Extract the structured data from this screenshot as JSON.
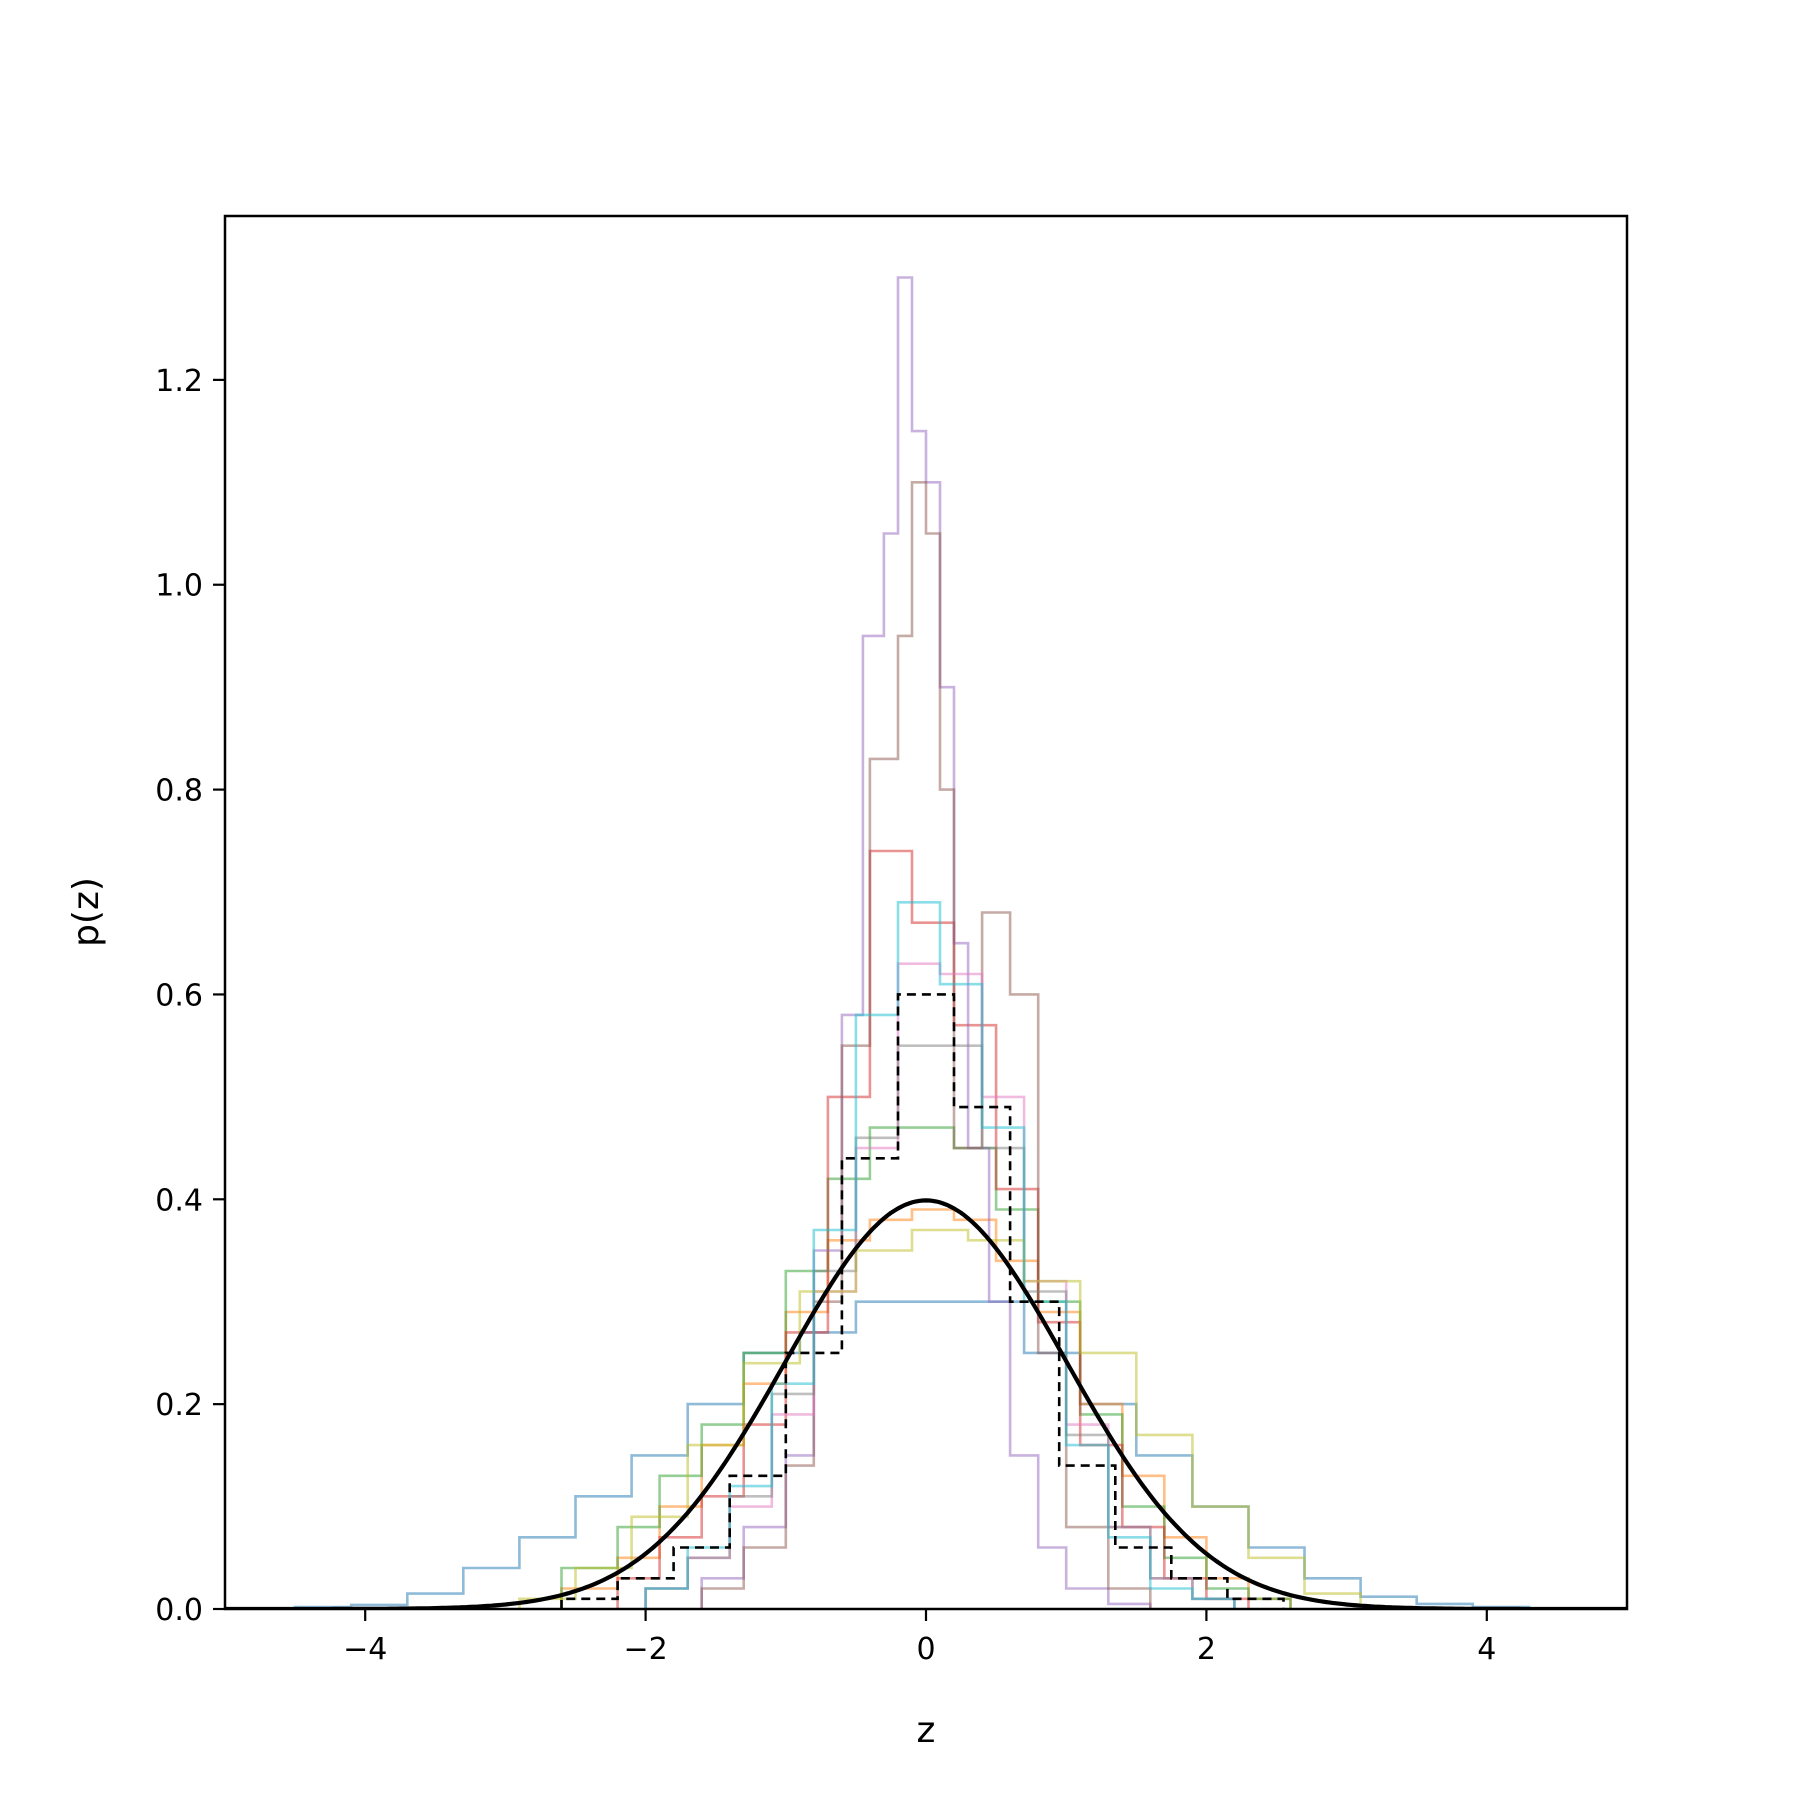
{
  "chart_data": {
    "type": "histogram",
    "title": "",
    "xlabel": "z",
    "ylabel": "p(z)",
    "xlim": [
      -5,
      5
    ],
    "ylim": [
      0,
      1.36
    ],
    "xticks": [
      -4,
      -2,
      0,
      2,
      4
    ],
    "xtick_labels": [
      "−4",
      "−2",
      "0",
      "2",
      "4"
    ],
    "yticks": [
      0.0,
      0.2,
      0.4,
      0.6,
      0.8,
      1.0,
      1.2
    ],
    "ytick_labels": [
      "0.0",
      "0.2",
      "0.4",
      "0.6",
      "0.8",
      "1.0",
      "1.2"
    ],
    "grid": false,
    "legend": "none",
    "series": [
      {
        "color": "#1f77b4",
        "style": "step",
        "edges": [
          -4.5,
          -4.1,
          -3.7,
          -3.3,
          -2.9,
          -2.5,
          -2.1,
          -1.7,
          -1.3,
          -0.9,
          -0.5,
          -0.1,
          0.3,
          0.7,
          1.1,
          1.5,
          1.9,
          2.3,
          2.7,
          3.1,
          3.5,
          3.9,
          4.3
        ],
        "values": [
          0.002,
          0.004,
          0.015,
          0.04,
          0.07,
          0.11,
          0.15,
          0.2,
          0.25,
          0.27,
          0.3,
          0.3,
          0.3,
          0.25,
          0.2,
          0.15,
          0.1,
          0.06,
          0.03,
          0.012,
          0.005,
          0.002
        ]
      },
      {
        "color": "#ff7f0e",
        "style": "step",
        "edges": [
          -2.6,
          -2.2,
          -1.9,
          -1.6,
          -1.3,
          -1.0,
          -0.7,
          -0.4,
          -0.1,
          0.2,
          0.5,
          0.8,
          1.1,
          1.4,
          1.7,
          2.0,
          2.3,
          2.6
        ],
        "values": [
          0.02,
          0.05,
          0.1,
          0.16,
          0.22,
          0.29,
          0.36,
          0.38,
          0.39,
          0.38,
          0.34,
          0.29,
          0.2,
          0.13,
          0.07,
          0.03,
          0.01
        ]
      },
      {
        "color": "#2ca02c",
        "style": "step",
        "edges": [
          -2.6,
          -2.2,
          -1.9,
          -1.6,
          -1.3,
          -1.0,
          -0.7,
          -0.4,
          -0.1,
          0.2,
          0.5,
          0.8,
          1.1,
          1.4,
          1.7,
          2.0,
          2.3,
          2.6
        ],
        "values": [
          0.04,
          0.08,
          0.13,
          0.18,
          0.25,
          0.33,
          0.42,
          0.47,
          0.47,
          0.45,
          0.39,
          0.3,
          0.19,
          0.1,
          0.05,
          0.02,
          0.01
        ]
      },
      {
        "color": "#d62728",
        "style": "step",
        "edges": [
          -2.2,
          -1.9,
          -1.6,
          -1.3,
          -1.0,
          -0.7,
          -0.4,
          -0.1,
          0.2,
          0.5,
          0.8,
          1.1,
          1.4,
          1.7,
          2.0,
          2.3
        ],
        "values": [
          0.03,
          0.07,
          0.11,
          0.18,
          0.27,
          0.5,
          0.74,
          0.67,
          0.57,
          0.41,
          0.28,
          0.16,
          0.08,
          0.03,
          0.01
        ]
      },
      {
        "color": "#9467bd",
        "style": "step",
        "edges": [
          -1.6,
          -1.3,
          -1.0,
          -0.8,
          -0.6,
          -0.45,
          -0.3,
          -0.2,
          -0.1,
          0.0,
          0.1,
          0.2,
          0.3,
          0.45,
          0.6,
          0.8,
          1.0,
          1.3,
          1.6
        ],
        "values": [
          0.03,
          0.08,
          0.15,
          0.35,
          0.58,
          0.95,
          1.05,
          1.3,
          1.15,
          1.1,
          0.9,
          0.65,
          0.45,
          0.3,
          0.15,
          0.06,
          0.02,
          0.005
        ]
      },
      {
        "color": "#8c564b",
        "style": "step",
        "edges": [
          -1.6,
          -1.3,
          -1.0,
          -0.8,
          -0.6,
          -0.4,
          -0.2,
          -0.1,
          0.0,
          0.1,
          0.2,
          0.4,
          0.6,
          0.8,
          1.0,
          1.3,
          1.6
        ],
        "values": [
          0.02,
          0.06,
          0.14,
          0.3,
          0.55,
          0.83,
          0.95,
          1.1,
          1.05,
          0.8,
          0.45,
          0.68,
          0.6,
          0.25,
          0.08,
          0.02
        ]
      },
      {
        "color": "#e377c2",
        "style": "step",
        "edges": [
          -2.0,
          -1.7,
          -1.4,
          -1.1,
          -0.8,
          -0.5,
          -0.2,
          0.1,
          0.4,
          0.7,
          1.0,
          1.3,
          1.6,
          1.9,
          2.2
        ],
        "values": [
          0.02,
          0.05,
          0.1,
          0.19,
          0.31,
          0.45,
          0.63,
          0.62,
          0.5,
          0.32,
          0.18,
          0.08,
          0.03,
          0.01
        ]
      },
      {
        "color": "#7f7f7f",
        "style": "step",
        "edges": [
          -2.0,
          -1.7,
          -1.4,
          -1.1,
          -0.8,
          -0.5,
          -0.2,
          0.1,
          0.4,
          0.7,
          1.0,
          1.3,
          1.6,
          1.9,
          2.2
        ],
        "values": [
          0.02,
          0.05,
          0.11,
          0.21,
          0.33,
          0.46,
          0.55,
          0.55,
          0.45,
          0.31,
          0.17,
          0.08,
          0.03,
          0.01
        ]
      },
      {
        "color": "#bcbd22",
        "style": "step",
        "edges": [
          -2.9,
          -2.5,
          -2.1,
          -1.7,
          -1.3,
          -0.9,
          -0.5,
          -0.1,
          0.3,
          0.7,
          1.1,
          1.5,
          1.9,
          2.3,
          2.7,
          3.1
        ],
        "values": [
          0.01,
          0.04,
          0.09,
          0.16,
          0.24,
          0.31,
          0.35,
          0.37,
          0.36,
          0.32,
          0.25,
          0.17,
          0.1,
          0.05,
          0.015
        ]
      },
      {
        "color": "#17becf",
        "style": "step",
        "edges": [
          -2.0,
          -1.7,
          -1.4,
          -1.1,
          -0.8,
          -0.5,
          -0.2,
          0.1,
          0.4,
          0.7,
          1.0,
          1.3,
          1.6,
          1.9,
          2.2
        ],
        "values": [
          0.02,
          0.06,
          0.12,
          0.22,
          0.37,
          0.58,
          0.69,
          0.61,
          0.47,
          0.3,
          0.16,
          0.07,
          0.02,
          0.01
        ]
      },
      {
        "color": "#000000",
        "style": "dashed-step",
        "edges": [
          -2.6,
          -2.2,
          -1.8,
          -1.4,
          -1.0,
          -0.6,
          -0.2,
          0.2,
          0.6,
          0.95,
          1.35,
          1.75,
          2.15,
          2.55
        ],
        "values": [
          0.01,
          0.03,
          0.06,
          0.13,
          0.25,
          0.44,
          0.6,
          0.49,
          0.3,
          0.14,
          0.06,
          0.03,
          0.01
        ]
      },
      {
        "color": "#000000",
        "style": "solid-line",
        "function": "standard-normal-pdf",
        "x_range": [
          -5,
          5
        ]
      }
    ]
  }
}
